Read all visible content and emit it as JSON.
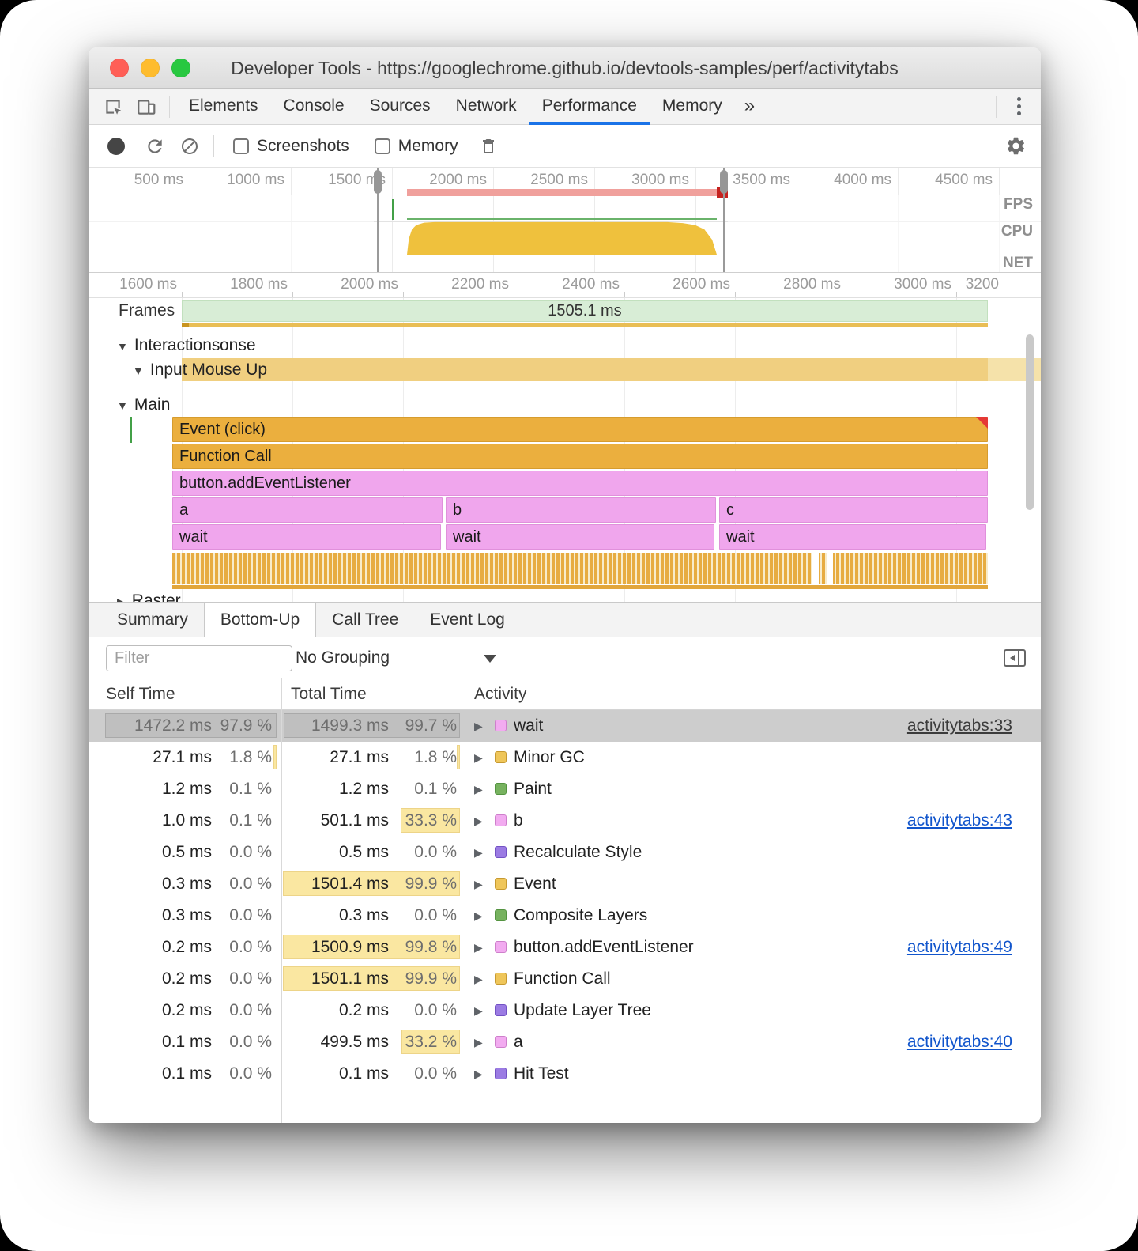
{
  "icons": {
    "caret_down": "▼",
    "caret_right": "▶",
    "more_tabs": "»"
  },
  "colors": {
    "accent": "#1A73E8",
    "link": "#1155CC",
    "selection_row": "#CDCDCD",
    "heat": "#FAE7A1",
    "swatch": {
      "pink": {
        "fill": "#F2ABF0",
        "border": "#CE7FCB"
      },
      "yellow": {
        "fill": "#EFC65A",
        "border": "#C79A31"
      },
      "green": {
        "fill": "#77B25F",
        "border": "#549441"
      },
      "purple": {
        "fill": "#9B7BE3",
        "border": "#7352C4"
      }
    }
  },
  "window": {
    "title": "Developer Tools - https://googlechrome.github.io/devtools-samples/perf/activitytabs"
  },
  "tabs": {
    "items": [
      "Elements",
      "Console",
      "Sources",
      "Network",
      "Performance",
      "Memory"
    ],
    "active": "Performance"
  },
  "toolbar": {
    "screenshots_label": "Screenshots",
    "memory_label": "Memory"
  },
  "overview": {
    "ticks": [
      "500 ms",
      "1000 ms",
      "1500 ms",
      "2000 ms",
      "2500 ms",
      "3000 ms",
      "3500 ms",
      "4000 ms",
      "4500 ms"
    ],
    "lanes": [
      "FPS",
      "CPU",
      "NET"
    ]
  },
  "detail_ruler": {
    "ticks": [
      "1600 ms",
      "1800 ms",
      "2000 ms",
      "2200 ms",
      "2400 ms",
      "2600 ms",
      "2800 ms",
      "3000 ms",
      "3200"
    ]
  },
  "frames": {
    "label": "Frames",
    "duration": "1505.1 ms"
  },
  "interactions": {
    "header": "Interactions",
    "clipped_label": "onse",
    "row_label": "Input Mouse Up"
  },
  "main": {
    "header": "Main",
    "raster_header": "Raster",
    "bars": {
      "event": "Event (click)",
      "function_call": "Function Call",
      "listener": "button.addEventListener",
      "a": "a",
      "b": "b",
      "c": "c",
      "wait": "wait"
    }
  },
  "bottom_tabs": {
    "items": [
      "Summary",
      "Bottom-Up",
      "Call Tree",
      "Event Log"
    ],
    "active": "Bottom-Up"
  },
  "filter": {
    "placeholder": "Filter",
    "grouping": "No Grouping"
  },
  "table": {
    "columns": [
      "Self Time",
      "Total Time",
      "Activity"
    ],
    "rows": [
      {
        "self_ms": "1472.2 ms",
        "self_pct": "97.9 %",
        "total_ms": "1499.3 ms",
        "total_pct": "99.7 %",
        "activity": "wait",
        "color": "pink",
        "link": "activitytabs:33",
        "selected": true
      },
      {
        "self_ms": "27.1 ms",
        "self_pct": "1.8 %",
        "total_ms": "27.1 ms",
        "total_pct": "1.8 %",
        "activity": "Minor GC",
        "color": "yellow"
      },
      {
        "self_ms": "1.2 ms",
        "self_pct": "0.1 %",
        "total_ms": "1.2 ms",
        "total_pct": "0.1 %",
        "activity": "Paint",
        "color": "green"
      },
      {
        "self_ms": "1.0 ms",
        "self_pct": "0.1 %",
        "total_ms": "501.1 ms",
        "total_pct": "33.3 %",
        "activity": "b",
        "color": "pink",
        "link": "activitytabs:43"
      },
      {
        "self_ms": "0.5 ms",
        "self_pct": "0.0 %",
        "total_ms": "0.5 ms",
        "total_pct": "0.0 %",
        "activity": "Recalculate Style",
        "color": "purple"
      },
      {
        "self_ms": "0.3 ms",
        "self_pct": "0.0 %",
        "total_ms": "1501.4 ms",
        "total_pct": "99.9 %",
        "activity": "Event",
        "color": "yellow"
      },
      {
        "self_ms": "0.3 ms",
        "self_pct": "0.0 %",
        "total_ms": "0.3 ms",
        "total_pct": "0.0 %",
        "activity": "Composite Layers",
        "color": "green"
      },
      {
        "self_ms": "0.2 ms",
        "self_pct": "0.0 %",
        "total_ms": "1500.9 ms",
        "total_pct": "99.8 %",
        "activity": "button.addEventListener",
        "color": "pink",
        "link": "activitytabs:49"
      },
      {
        "self_ms": "0.2 ms",
        "self_pct": "0.0 %",
        "total_ms": "1501.1 ms",
        "total_pct": "99.9 %",
        "activity": "Function Call",
        "color": "yellow"
      },
      {
        "self_ms": "0.2 ms",
        "self_pct": "0.0 %",
        "total_ms": "0.2 ms",
        "total_pct": "0.0 %",
        "activity": "Update Layer Tree",
        "color": "purple"
      },
      {
        "self_ms": "0.1 ms",
        "self_pct": "0.0 %",
        "total_ms": "499.5 ms",
        "total_pct": "33.2 %",
        "activity": "a",
        "color": "pink",
        "link": "activitytabs:40"
      },
      {
        "self_ms": "0.1 ms",
        "self_pct": "0.0 %",
        "total_ms": "0.1 ms",
        "total_pct": "0.0 %",
        "activity": "Hit Test",
        "color": "purple"
      }
    ]
  }
}
